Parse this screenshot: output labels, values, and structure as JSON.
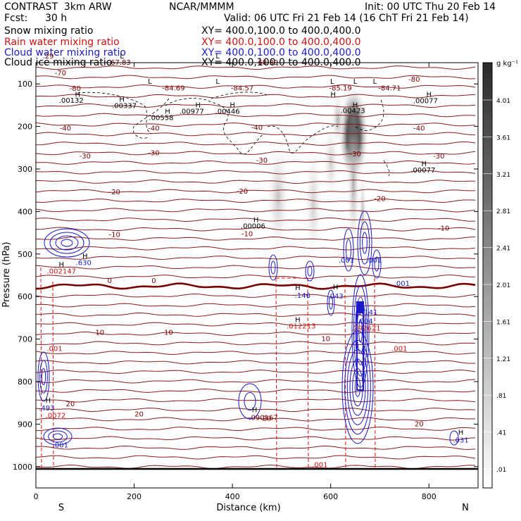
{
  "header": {
    "model": "CONTRAST  3km ARW",
    "org": "NCAR/MMMM",
    "init": "Init: 00 UTC Thu 20 Feb 14",
    "fcst_label": "Fcst:",
    "fcst_value": "30 h",
    "valid": "Valid: 06 UTC Fri 21 Feb 14 (16 ChT Fri 21 Feb 14)"
  },
  "legend": [
    {
      "label": "Snow mixing ratio",
      "xy": "XY= 400.0,100.0 to 400.0,400.0",
      "color": "#000000"
    },
    {
      "label": "Rain water mixing ratio",
      "xy": "XY= 400.0,100.0 to 400.0,400.0",
      "color": "#cc1111"
    },
    {
      "label": "Cloud water mixing ratio",
      "xy": "XY= 400.0,100.0 to 400.0,400.0",
      "color": "#1a1acc"
    },
    {
      "label": "Cloud ice mixing ratio",
      "xy": "XY= 400.0,100.0 to 400.0,400.0",
      "color": "#000000"
    }
  ],
  "chart_data": {
    "type": "contour",
    "xlabel": "Distance (km)",
    "ylabel": "Pressure (hPa)",
    "xlim": [
      0,
      900
    ],
    "ylim": [
      1050,
      50
    ],
    "x_ticks": [
      0,
      200,
      400,
      600,
      800
    ],
    "y_ticks": [
      100,
      200,
      300,
      400,
      500,
      600,
      700,
      800,
      900,
      1000
    ],
    "x_end_labels": {
      "left": "S",
      "right": "N"
    },
    "colorbar": {
      "unit": "g kg⁻¹",
      "labels": [
        "4.01",
        "3.61",
        "3.21",
        "2.81",
        "2.41",
        "2.01",
        "1.61",
        "1.21",
        ".81",
        ".41",
        ".01"
      ]
    },
    "temperature_labels": [
      {
        "x": 50,
        "p": 80,
        "text": "-70"
      },
      {
        "x": 80,
        "p": 116,
        "text": "-80"
      },
      {
        "x": 770,
        "p": 95,
        "text": "-80"
      },
      {
        "x": 60,
        "p": 210,
        "text": "-40"
      },
      {
        "x": 240,
        "p": 210,
        "text": "-40"
      },
      {
        "x": 780,
        "p": 210,
        "text": "-40"
      },
      {
        "x": 450,
        "p": 208,
        "text": "-40"
      },
      {
        "x": 100,
        "p": 275,
        "text": "-30"
      },
      {
        "x": 240,
        "p": 268,
        "text": "-30"
      },
      {
        "x": 460,
        "p": 285,
        "text": "-30"
      },
      {
        "x": 650,
        "p": 270,
        "text": "-30"
      },
      {
        "x": 820,
        "p": 275,
        "text": "-30"
      },
      {
        "x": 160,
        "p": 360,
        "text": "-20"
      },
      {
        "x": 420,
        "p": 358,
        "text": "-20"
      },
      {
        "x": 700,
        "p": 375,
        "text": "-20"
      },
      {
        "x": 160,
        "p": 460,
        "text": "-10"
      },
      {
        "x": 430,
        "p": 458,
        "text": "-10"
      },
      {
        "x": 830,
        "p": 445,
        "text": "-10"
      },
      {
        "x": 150,
        "p": 568,
        "text": "0"
      },
      {
        "x": 240,
        "p": 568,
        "text": "0"
      },
      {
        "x": 130,
        "p": 690,
        "text": "10"
      },
      {
        "x": 270,
        "p": 690,
        "text": "10"
      },
      {
        "x": 590,
        "p": 705,
        "text": "10"
      },
      {
        "x": 210,
        "p": 882,
        "text": "20"
      },
      {
        "x": 70,
        "p": 858,
        "text": "20"
      },
      {
        "x": 470,
        "p": 892,
        "text": "20"
      },
      {
        "x": 780,
        "p": 905,
        "text": "20"
      }
    ],
    "value_labels": [
      {
        "x": 25,
        "p": 40,
        "text": ".29",
        "color": "dark"
      },
      {
        "x": 170,
        "p": 55,
        "text": "-67.83",
        "color": "dark"
      },
      {
        "x": 470,
        "p": 55,
        "text": "-68.39",
        "color": "dark"
      },
      {
        "x": 280,
        "p": 115,
        "text": "-84.69",
        "color": "dark"
      },
      {
        "x": 420,
        "p": 115,
        "text": "-84.57",
        "color": "dark"
      },
      {
        "x": 620,
        "p": 115,
        "text": "-85.19",
        "color": "dark"
      },
      {
        "x": 720,
        "p": 115,
        "text": "-84.71",
        "color": "dark"
      },
      {
        "x": 72,
        "p": 144,
        "text": ".00132",
        "color": "black"
      },
      {
        "x": 180,
        "p": 157,
        "text": ".00337",
        "color": "black"
      },
      {
        "x": 317,
        "p": 170,
        "text": ".00977",
        "color": "black"
      },
      {
        "x": 390,
        "p": 170,
        "text": ".00446",
        "color": "black"
      },
      {
        "x": 645,
        "p": 168,
        "text": ".00423",
        "color": "black"
      },
      {
        "x": 255,
        "p": 185,
        "text": ".00558",
        "color": "black"
      },
      {
        "x": 793,
        "p": 145,
        "text": ".00077",
        "color": "black"
      },
      {
        "x": 788,
        "p": 308,
        "text": ".00077",
        "color": "black"
      },
      {
        "x": 442,
        "p": 440,
        "text": ".00006",
        "color": "black"
      },
      {
        "x": 97,
        "p": 526,
        "text": ".630",
        "color": "blue"
      },
      {
        "x": 52,
        "p": 546,
        "text": ".002147",
        "color": "red"
      },
      {
        "x": 543,
        "p": 603,
        "text": ".146",
        "color": "blue"
      },
      {
        "x": 610,
        "p": 605,
        "text": ".043",
        "color": "blue"
      },
      {
        "x": 632,
        "p": 520,
        "text": ".001",
        "color": "blue"
      },
      {
        "x": 688,
        "p": 520,
        "text": ".001",
        "color": "blue"
      },
      {
        "x": 745,
        "p": 575,
        "text": ".001",
        "color": "blue"
      },
      {
        "x": 675,
        "p": 643,
        "text": "1.141",
        "color": "blue"
      },
      {
        "x": 540,
        "p": 675,
        "text": ".012213",
        "color": "red"
      },
      {
        "x": 672,
        "p": 680,
        "text": ".292621",
        "color": "red"
      },
      {
        "x": 38,
        "p": 728,
        "text": ".001",
        "color": "red"
      },
      {
        "x": 740,
        "p": 728,
        "text": ".001",
        "color": "red"
      },
      {
        "x": 22,
        "p": 868,
        "text": ".493",
        "color": "blue"
      },
      {
        "x": 40,
        "p": 885,
        "text": ".0072",
        "color": "red"
      },
      {
        "x": 463,
        "p": 890,
        "text": ".090167",
        "color": "dark"
      },
      {
        "x": 50,
        "p": 955,
        "text": ".001",
        "color": "blue"
      },
      {
        "x": 865,
        "p": 943,
        "text": ".031",
        "color": "blue"
      },
      {
        "x": 578,
        "p": 1001,
        "text": ".001",
        "color": "red"
      },
      {
        "x": 670,
        "p": 663,
        "text": ".004",
        "color": "blue"
      }
    ],
    "markers": [
      {
        "x": 175,
        "p": 40,
        "text": "L"
      },
      {
        "x": 370,
        "p": 40,
        "text": "L"
      },
      {
        "x": 232,
        "p": 100,
        "text": "L"
      },
      {
        "x": 370,
        "p": 100,
        "text": "L"
      },
      {
        "x": 603,
        "p": 100,
        "text": "L"
      },
      {
        "x": 690,
        "p": 100,
        "text": "L"
      },
      {
        "x": 650,
        "p": 100,
        "text": "L"
      },
      {
        "x": 85,
        "p": 130,
        "text": "H"
      },
      {
        "x": 175,
        "p": 142,
        "text": "H"
      },
      {
        "x": 330,
        "p": 155,
        "text": "H"
      },
      {
        "x": 400,
        "p": 155,
        "text": "H"
      },
      {
        "x": 650,
        "p": 155,
        "text": "H"
      },
      {
        "x": 605,
        "p": 130,
        "text": "H"
      },
      {
        "x": 268,
        "p": 170,
        "text": "H"
      },
      {
        "x": 800,
        "p": 130,
        "text": "H"
      },
      {
        "x": 790,
        "p": 293,
        "text": "H"
      },
      {
        "x": 448,
        "p": 425,
        "text": "H"
      },
      {
        "x": 100,
        "p": 510,
        "text": "H"
      },
      {
        "x": 52,
        "p": 530,
        "text": "H"
      },
      {
        "x": 533,
        "p": 585,
        "text": "H"
      },
      {
        "x": 610,
        "p": 583,
        "text": "H"
      },
      {
        "x": 533,
        "p": 660,
        "text": "H"
      },
      {
        "x": 25,
        "p": 850,
        "text": "H"
      },
      {
        "x": 445,
        "p": 872,
        "text": "H"
      },
      {
        "x": 865,
        "p": 925,
        "text": "H"
      }
    ]
  }
}
